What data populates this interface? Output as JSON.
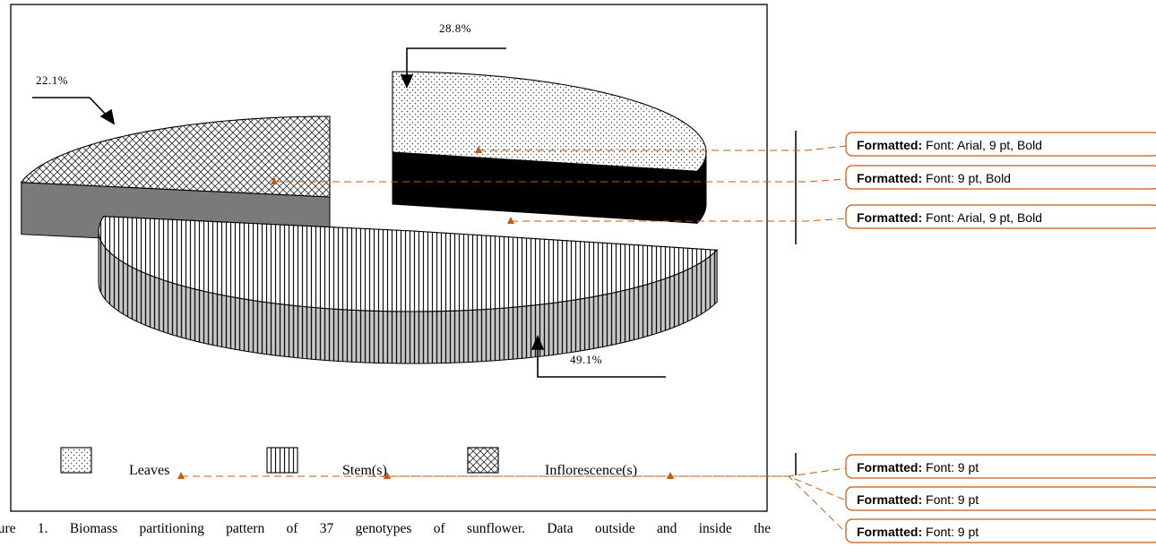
{
  "chart_data": {
    "type": "pie",
    "style": "3d-exploded",
    "categories": [
      "Leaves",
      "Stem(s)",
      "Inflorescence(s)"
    ],
    "values": [
      28.8,
      49.1,
      22.1
    ],
    "data_labels": [
      "28.8%",
      "49.1%",
      "22.1%"
    ],
    "legend": {
      "placement": "bottom",
      "entries": [
        {
          "label": "Leaves",
          "pattern": "dots"
        },
        {
          "label": "Stem(s)",
          "pattern": "vertical-lines"
        },
        {
          "label": "Inflorescence(s)",
          "pattern": "diagonal-crosshatch"
        }
      ]
    },
    "title": ""
  },
  "caption": "gure 1. Biomass partitioning pattern of 37 genotypes of sunflower. Data outside and inside the",
  "track_changes": {
    "label": "Formatted:",
    "callouts": [
      {
        "detail": "Font: Arial, 9 pt, Bold"
      },
      {
        "detail": "Font: 9 pt, Bold"
      },
      {
        "detail": "Font: Arial, 9 pt, Bold"
      },
      {
        "detail": "Font: 9 pt"
      },
      {
        "detail": "Font: 9 pt"
      },
      {
        "detail": "Font: 9 pt"
      }
    ],
    "accent_color": "#c55a11"
  }
}
